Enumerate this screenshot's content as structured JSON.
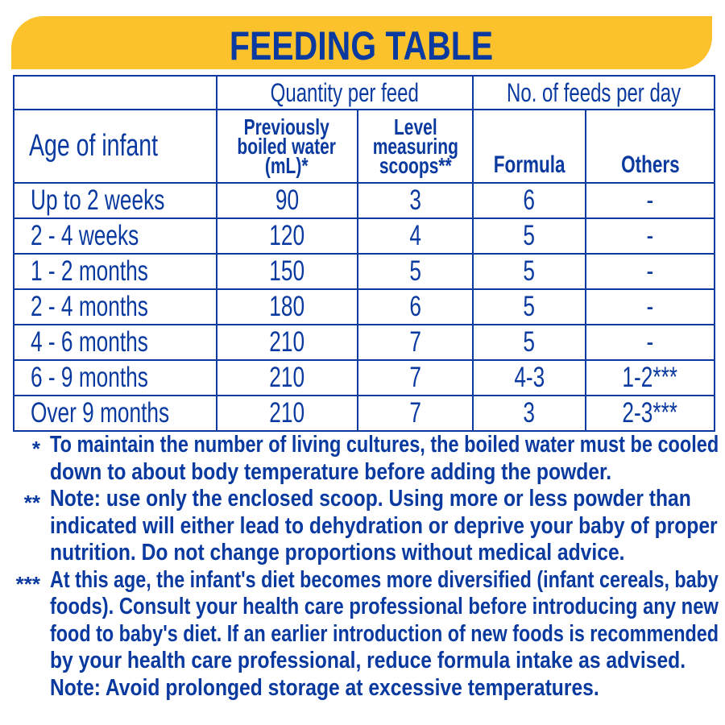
{
  "title": "FEEDING TABLE",
  "colors": {
    "blue": "#0a3aa0",
    "yellow": "#fbc22c"
  },
  "table": {
    "group_headers": {
      "quantity": "Quantity per feed",
      "feeds": "No. of feeds per day"
    },
    "headers": {
      "age": "Age of infant",
      "water": [
        "Previously",
        "boiled water",
        "(mL)*"
      ],
      "scoops": [
        "Level",
        "measuring",
        "scoops**"
      ],
      "formula": "Formula",
      "others": "Others"
    },
    "rows": [
      {
        "age": "Up to 2 weeks",
        "water": "90",
        "scoops": "3",
        "formula": "6",
        "others": "-"
      },
      {
        "age": "2 - 4 weeks",
        "water": "120",
        "scoops": "4",
        "formula": "5",
        "others": "-"
      },
      {
        "age": "1 - 2 months",
        "water": "150",
        "scoops": "5",
        "formula": "5",
        "others": "-"
      },
      {
        "age": "2 - 4 months",
        "water": "180",
        "scoops": "6",
        "formula": "5",
        "others": "-"
      },
      {
        "age": "4 - 6 months",
        "water": "210",
        "scoops": "7",
        "formula": "5",
        "others": "-"
      },
      {
        "age": "6 - 9 months",
        "water": "210",
        "scoops": "7",
        "formula": "4-3",
        "others": "1-2***"
      },
      {
        "age": "Over 9 months",
        "water": "210",
        "scoops": "7",
        "formula": "3",
        "others": "2-3***"
      }
    ]
  },
  "footnotes": [
    {
      "mark": "*",
      "lines": [
        "To maintain the number of living cultures, the boiled water must be cooled",
        "down to about body temperature before adding the powder."
      ]
    },
    {
      "mark": "**",
      "lines": [
        "Note: use only the enclosed scoop. Using more or less powder than",
        "indicated will either lead to dehydration or deprive your baby of proper",
        "nutrition. Do not change proportions without medical advice."
      ]
    },
    {
      "mark": "***",
      "lines": [
        "At this age, the infant's diet becomes more diversified (infant cereals, baby",
        "foods). Consult your health care professional before introducing any new",
        "food to baby's diet. If an earlier introduction of new foods is recommended",
        "by your health care professional, reduce formula intake as advised.",
        "Note: Avoid prolonged storage at excessive temperatures."
      ]
    }
  ]
}
